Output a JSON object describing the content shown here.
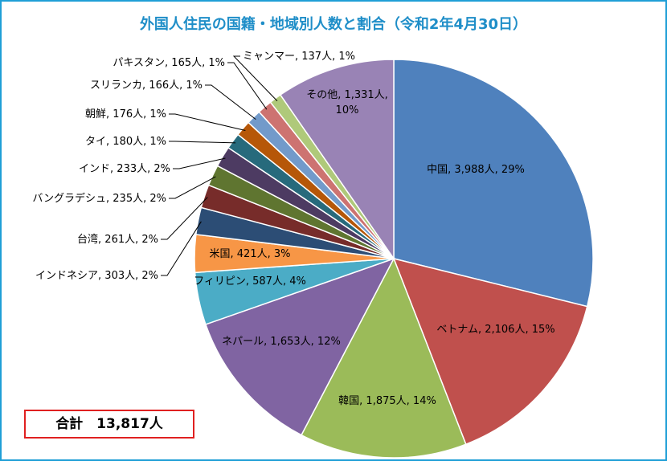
{
  "title": "外国人住民の国籍・地域別人数と割合（令和2年4月30日）",
  "total_label": "合計　13,817人",
  "chart_data": {
    "type": "pie",
    "title": "外国人住民の国籍・地域別人数と割合（令和2年4月30日）",
    "total": 13817,
    "slices": [
      {
        "name": "中国",
        "value": 3988,
        "percent": 29,
        "label": "中国, 3,988人, 29%",
        "color": "#4f81bd"
      },
      {
        "name": "ベトナム",
        "value": 2106,
        "percent": 15,
        "label": "ベトナム, 2,106人, 15%",
        "color": "#c0504d"
      },
      {
        "name": "韓国",
        "value": 1875,
        "percent": 14,
        "label": "韓国, 1,875人, 14%",
        "color": "#9bbb59"
      },
      {
        "name": "ネパール",
        "value": 1653,
        "percent": 12,
        "label": "ネパール, 1,653人, 12%",
        "color": "#8064a2"
      },
      {
        "name": "フィリピン",
        "value": 587,
        "percent": 4,
        "label": "フィリピン, 587人, 4%",
        "color": "#4bacc6"
      },
      {
        "name": "米国",
        "value": 421,
        "percent": 3,
        "label": "米国, 421人, 3%",
        "color": "#f79646"
      },
      {
        "name": "インドネシア",
        "value": 303,
        "percent": 2,
        "label": "インドネシア, 303人, 2%",
        "color": "#2c4d75"
      },
      {
        "name": "台湾",
        "value": 261,
        "percent": 2,
        "label": "台湾, 261人, 2%",
        "color": "#772c2a"
      },
      {
        "name": "バングラデシュ",
        "value": 235,
        "percent": 2,
        "label": "バングラデシュ, 235人, 2%",
        "color": "#5f7530"
      },
      {
        "name": "インド",
        "value": 233,
        "percent": 2,
        "label": "インド, 233人, 2%",
        "color": "#4d3b62"
      },
      {
        "name": "タイ",
        "value": 180,
        "percent": 1,
        "label": "タイ, 180人, 1%",
        "color": "#276a7c"
      },
      {
        "name": "朝鮮",
        "value": 176,
        "percent": 1,
        "label": "朝鮮, 176人, 1%",
        "color": "#b65708"
      },
      {
        "name": "スリランカ",
        "value": 166,
        "percent": 1,
        "label": "スリランカ, 166人, 1%",
        "color": "#729aca"
      },
      {
        "name": "パキスタン",
        "value": 165,
        "percent": 1,
        "label": "パキスタン, 165人, 1%",
        "color": "#cd7371"
      },
      {
        "name": "ミャンマー",
        "value": 137,
        "percent": 1,
        "label": "ミャンマー, 137人, 1%",
        "color": "#afc97a"
      },
      {
        "name": "その他",
        "value": 1331,
        "percent": 10,
        "label": "その他, 1,331人, 10%",
        "color": "#9983b5"
      }
    ]
  }
}
